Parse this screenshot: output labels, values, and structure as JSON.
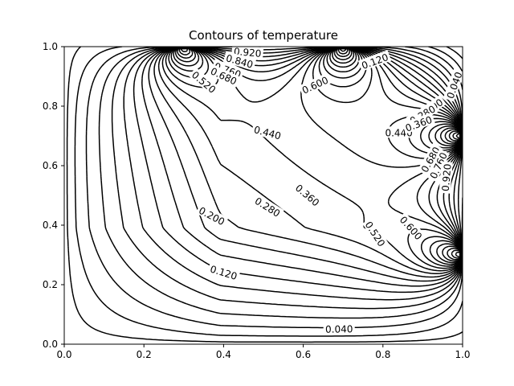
{
  "chart_data": {
    "type": "contour",
    "title": "Contours of temperature",
    "xlabel": "",
    "ylabel": "",
    "xlim": [
      0.0,
      1.0
    ],
    "ylim": [
      0.0,
      1.0
    ],
    "x_ticks": [
      "0.0",
      "0.2",
      "0.4",
      "0.6",
      "0.8",
      "1.0"
    ],
    "y_ticks": [
      "0.0",
      "0.2",
      "0.4",
      "0.6",
      "0.8",
      "1.0"
    ],
    "grid": false,
    "line_color": "#000000",
    "source_points": [
      {
        "x": 0.3,
        "y": 1.0
      },
      {
        "x": 0.7,
        "y": 1.0
      },
      {
        "x": 1.0,
        "y": 0.7
      },
      {
        "x": 1.0,
        "y": 0.3
      }
    ],
    "levels": [
      0.04,
      0.08,
      0.12,
      0.16,
      0.2,
      0.24,
      0.28,
      0.32,
      0.36,
      0.4,
      0.44,
      0.48,
      0.52,
      0.56,
      0.6,
      0.64,
      0.68,
      0.72,
      0.76,
      0.8,
      0.84,
      0.88,
      0.92,
      0.96
    ],
    "contour_labels": [
      {
        "text": "0.040",
        "x": 0.69,
        "y": 0.05,
        "angle": -1
      },
      {
        "text": "0.120",
        "x": 0.4,
        "y": 0.24,
        "angle": 17
      },
      {
        "text": "0.200",
        "x": 0.37,
        "y": 0.43,
        "angle": 28
      },
      {
        "text": "0.280",
        "x": 0.51,
        "y": 0.46,
        "angle": 32
      },
      {
        "text": "0.360",
        "x": 0.61,
        "y": 0.5,
        "angle": 40
      },
      {
        "text": "0.440",
        "x": 0.51,
        "y": 0.71,
        "angle": 15
      },
      {
        "text": "0.440",
        "x": 0.84,
        "y": 0.71,
        "angle": 0
      },
      {
        "text": "0.520",
        "x": 0.78,
        "y": 0.37,
        "angle": 57
      },
      {
        "text": "0.600",
        "x": 0.63,
        "y": 0.87,
        "angle": -25
      },
      {
        "text": "0.600",
        "x": 0.87,
        "y": 0.39,
        "angle": 48
      },
      {
        "text": "0.920",
        "x": 0.46,
        "y": 0.98,
        "angle": 5
      },
      {
        "text": "0.840",
        "x": 0.44,
        "y": 0.95,
        "angle": 15
      },
      {
        "text": "0.760",
        "x": 0.41,
        "y": 0.92,
        "angle": 20
      },
      {
        "text": "0.680",
        "x": 0.4,
        "y": 0.9,
        "angle": 25
      },
      {
        "text": "0.520",
        "x": 0.35,
        "y": 0.88,
        "angle": 40
      },
      {
        "text": "0.120",
        "x": 0.78,
        "y": 0.95,
        "angle": -20
      },
      {
        "text": "0.040",
        "x": 0.98,
        "y": 0.87,
        "angle": -70
      },
      {
        "text": "0.200",
        "x": 0.92,
        "y": 0.79,
        "angle": -35
      },
      {
        "text": "0.280",
        "x": 0.9,
        "y": 0.77,
        "angle": -30
      },
      {
        "text": "0.360",
        "x": 0.89,
        "y": 0.74,
        "angle": -20
      },
      {
        "text": "0.680",
        "x": 0.92,
        "y": 0.62,
        "angle": -60
      },
      {
        "text": "0.760",
        "x": 0.94,
        "y": 0.6,
        "angle": -65
      },
      {
        "text": "0.920",
        "x": 0.96,
        "y": 0.56,
        "angle": -85
      }
    ]
  }
}
